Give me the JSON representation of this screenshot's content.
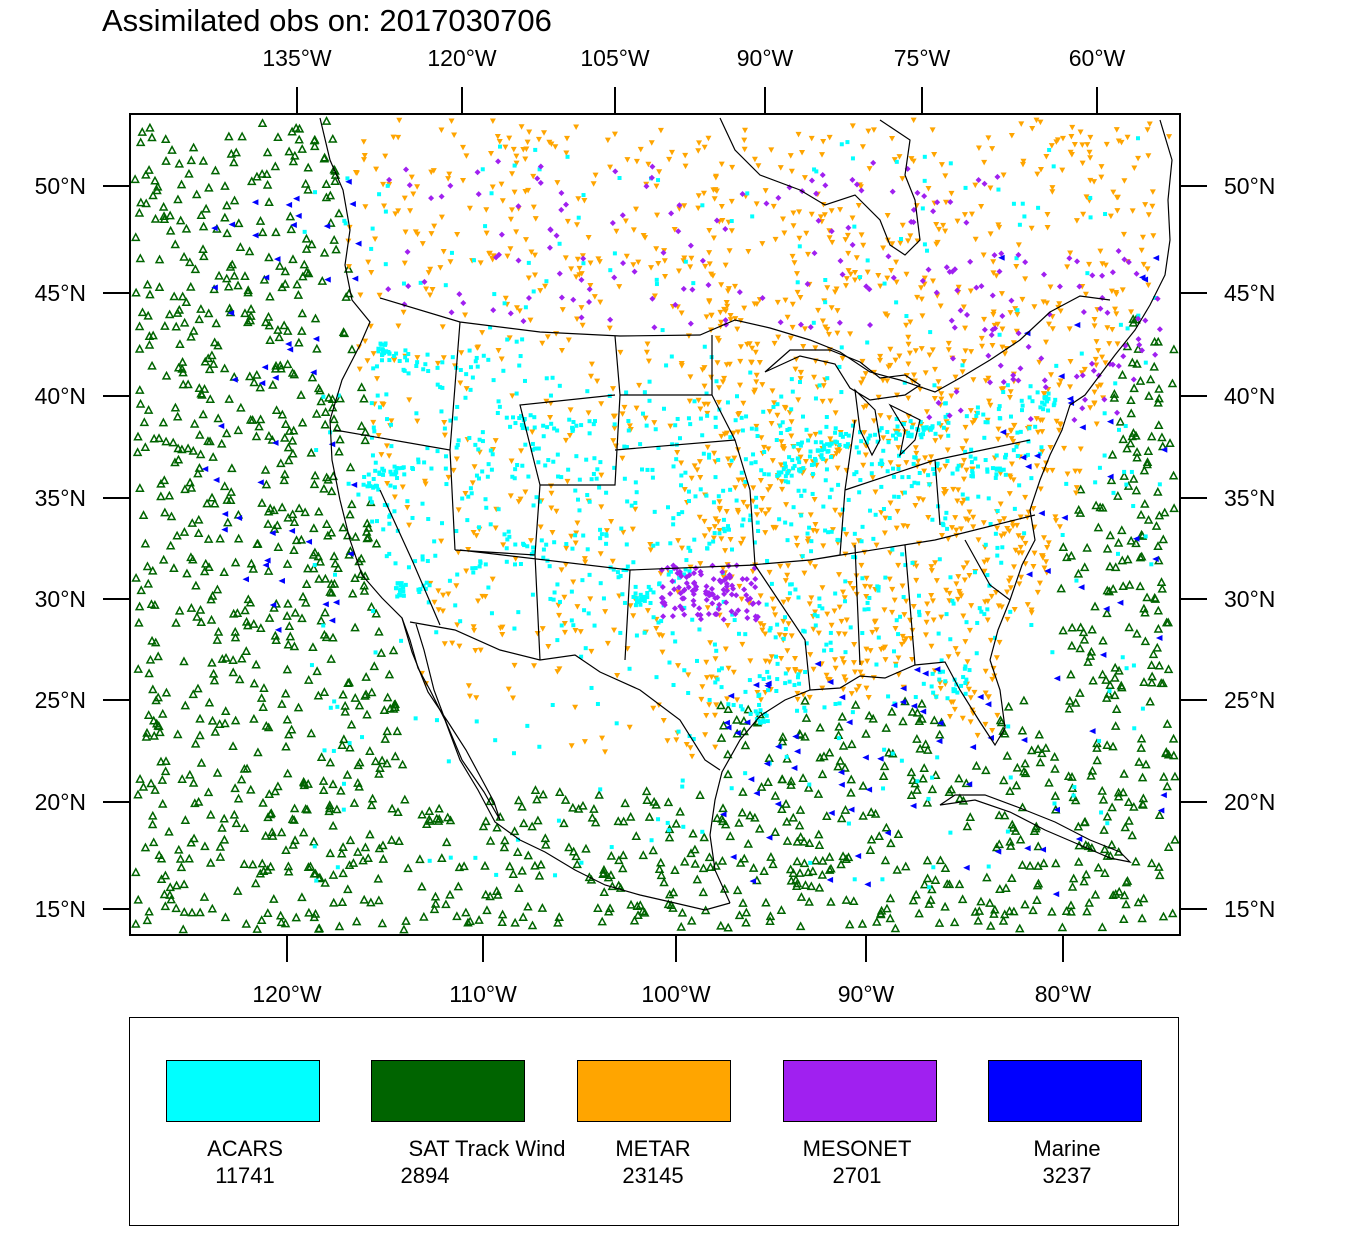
{
  "title": "Assimilated obs on: 2017030706",
  "map": {
    "projection": "lambert-conformal",
    "top_lon_ticks": [
      "135°W",
      "120°W",
      "105°W",
      "90°W",
      "75°W",
      "60°W"
    ],
    "bottom_lon_ticks": [
      "120°W",
      "110°W",
      "100°W",
      "90°W",
      "80°W"
    ],
    "lat_ticks": [
      "50°N",
      "45°N",
      "40°N",
      "35°N",
      "30°N",
      "25°N",
      "20°N",
      "15°N"
    ],
    "line_color": "#000000"
  },
  "legend": {
    "items": [
      {
        "label": "ACARS",
        "count": "11741",
        "color": "#00FFFF",
        "marker": "square-dot"
      },
      {
        "label": "SAT Track Wind",
        "count": "2894",
        "color": "#006400",
        "marker": "triangle-up-outline"
      },
      {
        "label": "METAR",
        "count": "23145",
        "color": "#FFA500",
        "marker": "triangle-down-filled"
      },
      {
        "label": "MESONET",
        "count": "2701",
        "color": "#A020F0",
        "marker": "diamond"
      },
      {
        "label": "Marine",
        "count": "3237",
        "color": "#0000FF",
        "marker": "triangle-left-filled"
      }
    ]
  }
}
